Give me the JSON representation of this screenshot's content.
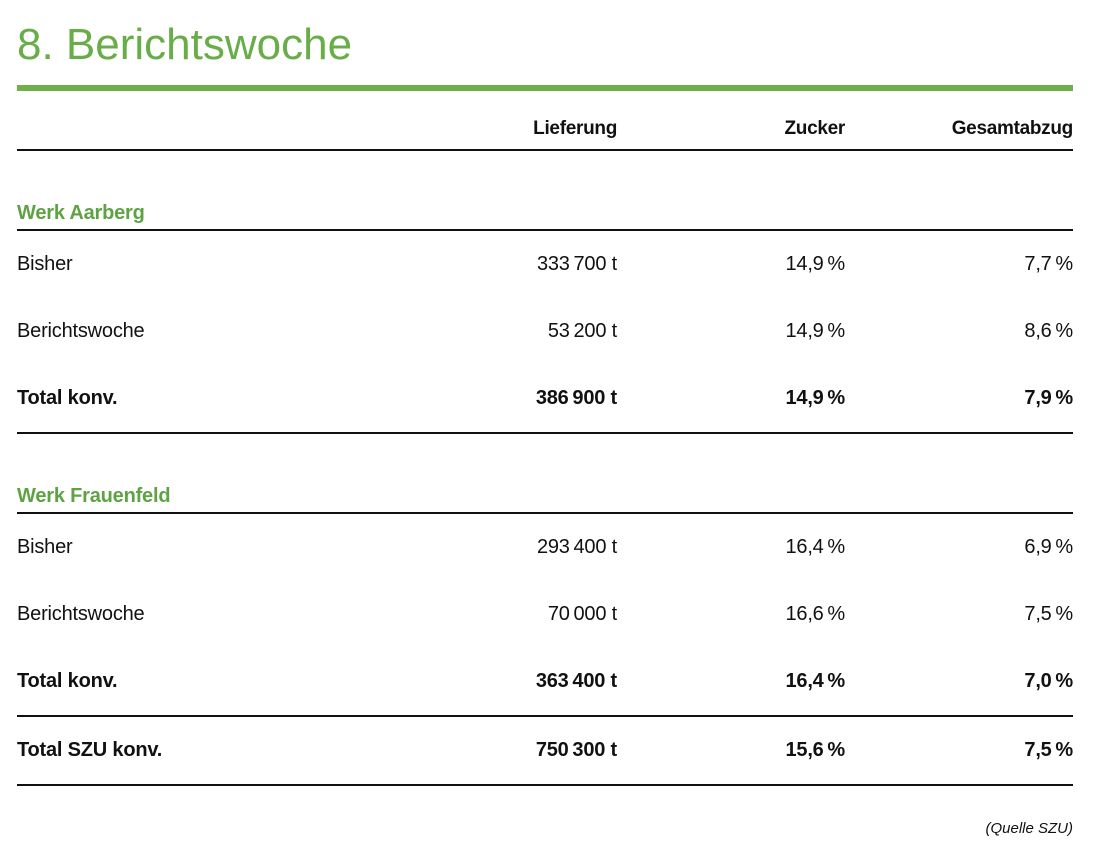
{
  "page": {
    "title": "8. Berichtswoche",
    "source_note": "(Quelle SZU)"
  },
  "colors": {
    "accent_green": "#69ad49",
    "rule_black": "#111111"
  },
  "table": {
    "columns": [
      "Lieferung",
      "Zucker",
      "Gesamtabzug"
    ],
    "sections": [
      {
        "heading": "Werk Aarberg",
        "rows": [
          {
            "label": "Bisher",
            "lieferung": "333 700 t",
            "zucker": "14,9 %",
            "gesamtabzug": "7,7 %"
          },
          {
            "label": "Berichtswoche",
            "lieferung": "53 200 t",
            "zucker": "14,9 %",
            "gesamtabzug": "8,6 %"
          },
          {
            "label": "Total konv.",
            "lieferung": "386 900 t",
            "zucker": "14,9 %",
            "gesamtabzug": "7,9 %"
          }
        ]
      },
      {
        "heading": "Werk Frauenfeld",
        "rows": [
          {
            "label": "Bisher",
            "lieferung": "293 400 t",
            "zucker": "16,4 %",
            "gesamtabzug": "6,9 %"
          },
          {
            "label": "Berichtswoche",
            "lieferung": "70 000 t",
            "zucker": "16,6 %",
            "gesamtabzug": "7,5 %"
          },
          {
            "label": "Total konv.",
            "lieferung": "363 400 t",
            "zucker": "16,4 %",
            "gesamtabzug": "7,0 %"
          }
        ]
      }
    ],
    "grand_total": {
      "label": "Total SZU konv.",
      "lieferung": "750 300 t",
      "zucker": "15,6 %",
      "gesamtabzug": "7,5 %"
    }
  }
}
